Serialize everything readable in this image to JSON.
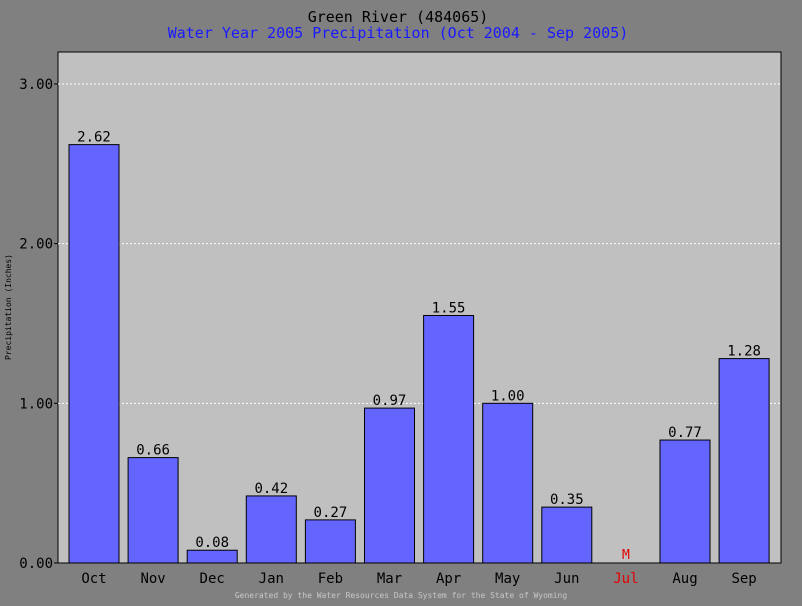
{
  "chart_data": {
    "type": "bar",
    "title": "Green River (484065)",
    "subtitle": "Water Year 2005 Precipitation (Oct 2004 - Sep 2005)",
    "xlabel": "",
    "ylabel": "Precipitation (Inches)",
    "ylim": [
      0,
      3.2
    ],
    "yticks": [
      "0.00",
      "1.00",
      "2.00",
      "3.00"
    ],
    "categories": [
      "Oct",
      "Nov",
      "Dec",
      "Jan",
      "Feb",
      "Mar",
      "Apr",
      "May",
      "Jun",
      "Jul",
      "Aug",
      "Sep"
    ],
    "values": [
      2.62,
      0.66,
      0.08,
      0.42,
      0.27,
      0.97,
      1.55,
      1.0,
      0.35,
      null,
      0.77,
      1.28
    ],
    "value_labels": [
      "2.62",
      "0.66",
      "0.08",
      "0.42",
      "0.27",
      "0.97",
      "1.55",
      "1.00",
      "0.35",
      "M",
      "0.77",
      "1.28"
    ],
    "missing_indices": [
      9
    ],
    "grid": true,
    "footer": "Generated by the Water Resources Data System for the State of Wyoming",
    "colors": {
      "bar": "#6464ff",
      "plot_background": "#c0c0c0",
      "page_background": "#808080",
      "title": "#000000",
      "subtitle": "#1a1aff",
      "missing": "#e00000",
      "footer": "#c8c8c8"
    }
  }
}
